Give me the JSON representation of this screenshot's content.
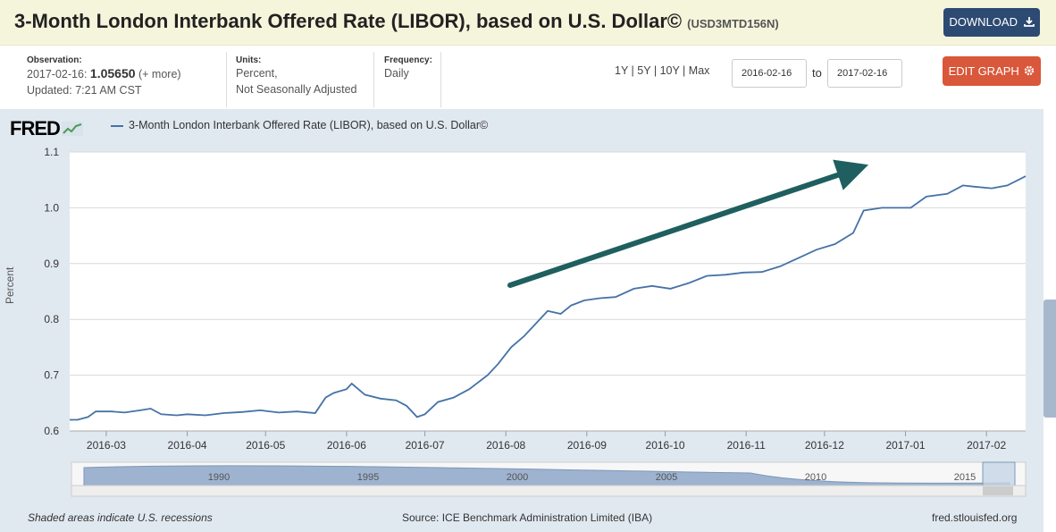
{
  "header": {
    "title": "3-Month London Interbank Offered Rate (LIBOR), based on U.S. Dollar©",
    "series_id": "(USD3MTD156N)",
    "download_label": "DOWNLOAD",
    "download_icon": "download-icon"
  },
  "info": {
    "observation_label": "Observation:",
    "observation_date": "2017-02-16:",
    "observation_value": "1.05650",
    "observation_more": "(+ more)",
    "updated": "Updated: 7:21 AM CST",
    "units_label": "Units:",
    "units_line1": "Percent,",
    "units_line2": "Not Seasonally Adjusted",
    "frequency_label": "Frequency:",
    "frequency_value": "Daily"
  },
  "range": {
    "options": [
      "1Y",
      "5Y",
      "10Y",
      "Max"
    ],
    "start": "2016-02-16",
    "to_label": "to",
    "end": "2017-02-16"
  },
  "edit_label": "EDIT GRAPH",
  "edit_icon": "gear-icon",
  "logo": "FRED",
  "legend_label": "3-Month London Interbank Offered Rate (LIBOR), based on U.S. Dollar©",
  "colors": {
    "line": "#4572a7",
    "arrow": "#1f5f5f",
    "plot_bg": "#e1e9f0",
    "download_btn": "#2d4a73",
    "edit_btn": "#d9573a"
  },
  "footer": {
    "recession_note": "Shaded areas indicate U.S. recessions",
    "source": "Source: ICE Benchmark Administration Limited (IBA)",
    "site": "fred.stlouisfed.org"
  },
  "navigator": {
    "labels": [
      "1990",
      "1995",
      "2000",
      "2005",
      "2010",
      "2015"
    ]
  },
  "chart_data": {
    "type": "line",
    "title": "",
    "xlabel": "",
    "ylabel": "Percent",
    "ylim": [
      0.6,
      1.1
    ],
    "yticks": [
      "0.6",
      "0.7",
      "0.8",
      "0.9",
      "1.0",
      "1.1"
    ],
    "xticks": [
      "2016-03",
      "2016-04",
      "2016-05",
      "2016-06",
      "2016-07",
      "2016-08",
      "2016-09",
      "2016-10",
      "2016-11",
      "2016-12",
      "2017-01",
      "2017-02"
    ],
    "grid": true,
    "series": [
      {
        "name": "3-Month London Interbank Offered Rate (LIBOR), based on U.S. Dollar©",
        "points": [
          [
            "2016-02-16",
            0.62
          ],
          [
            "2016-02-19",
            0.62
          ],
          [
            "2016-02-23",
            0.625
          ],
          [
            "2016-02-26",
            0.635
          ],
          [
            "2016-03-03",
            0.635
          ],
          [
            "2016-03-08",
            0.633
          ],
          [
            "2016-03-14",
            0.637
          ],
          [
            "2016-03-18",
            0.64
          ],
          [
            "2016-03-22",
            0.63
          ],
          [
            "2016-03-28",
            0.628
          ],
          [
            "2016-04-01",
            0.63
          ],
          [
            "2016-04-08",
            0.628
          ],
          [
            "2016-04-15",
            0.632
          ],
          [
            "2016-04-22",
            0.634
          ],
          [
            "2016-04-29",
            0.637
          ],
          [
            "2016-05-06",
            0.633
          ],
          [
            "2016-05-13",
            0.635
          ],
          [
            "2016-05-20",
            0.632
          ],
          [
            "2016-05-24",
            0.66
          ],
          [
            "2016-05-27",
            0.668
          ],
          [
            "2016-06-01",
            0.675
          ],
          [
            "2016-06-03",
            0.685
          ],
          [
            "2016-06-08",
            0.665
          ],
          [
            "2016-06-14",
            0.658
          ],
          [
            "2016-06-20",
            0.655
          ],
          [
            "2016-06-24",
            0.645
          ],
          [
            "2016-06-28",
            0.625
          ],
          [
            "2016-07-01",
            0.63
          ],
          [
            "2016-07-06",
            0.652
          ],
          [
            "2016-07-12",
            0.66
          ],
          [
            "2016-07-18",
            0.675
          ],
          [
            "2016-07-25",
            0.7
          ],
          [
            "2016-07-29",
            0.72
          ],
          [
            "2016-08-03",
            0.75
          ],
          [
            "2016-08-08",
            0.77
          ],
          [
            "2016-08-12",
            0.79
          ],
          [
            "2016-08-17",
            0.815
          ],
          [
            "2016-08-22",
            0.81
          ],
          [
            "2016-08-26",
            0.825
          ],
          [
            "2016-08-31",
            0.834
          ],
          [
            "2016-09-06",
            0.838
          ],
          [
            "2016-09-12",
            0.84
          ],
          [
            "2016-09-19",
            0.855
          ],
          [
            "2016-09-26",
            0.86
          ],
          [
            "2016-10-03",
            0.855
          ],
          [
            "2016-10-10",
            0.865
          ],
          [
            "2016-10-17",
            0.878
          ],
          [
            "2016-10-24",
            0.88
          ],
          [
            "2016-10-31",
            0.884
          ],
          [
            "2016-11-07",
            0.885
          ],
          [
            "2016-11-14",
            0.895
          ],
          [
            "2016-11-21",
            0.91
          ],
          [
            "2016-11-28",
            0.925
          ],
          [
            "2016-12-05",
            0.935
          ],
          [
            "2016-12-12",
            0.955
          ],
          [
            "2016-12-16",
            0.995
          ],
          [
            "2016-12-23",
            1.0
          ],
          [
            "2017-01-03",
            1.0
          ],
          [
            "2017-01-09",
            1.02
          ],
          [
            "2017-01-17",
            1.025
          ],
          [
            "2017-01-23",
            1.04
          ],
          [
            "2017-01-27",
            1.038
          ],
          [
            "2017-02-03",
            1.035
          ],
          [
            "2017-02-09",
            1.04
          ],
          [
            "2017-02-16",
            1.0565
          ]
        ]
      }
    ]
  }
}
